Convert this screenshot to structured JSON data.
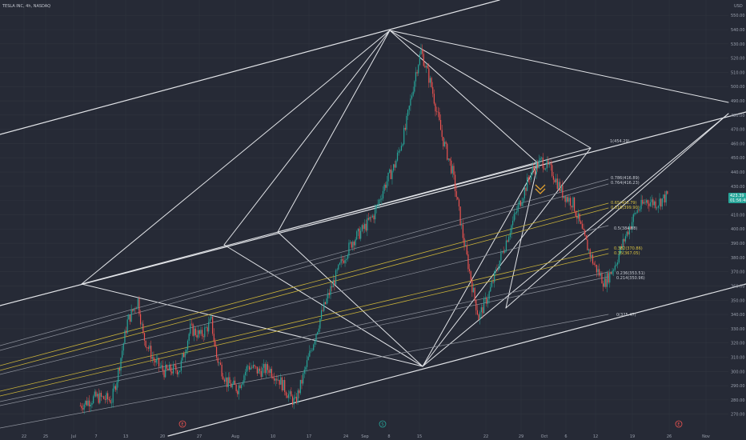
{
  "symbol_title": "TESLA INC, 4h, NASDAQ",
  "currency": "USD",
  "colors": {
    "background": "#262a36",
    "grid": "#30343f",
    "up": "#26a69a",
    "down": "#ef5350",
    "line_white": "#e2e4e8",
    "line_gray": "#8c909a",
    "fib_yellow": "#c9b23a",
    "marker_orange": "#e0a030"
  },
  "price_axis": {
    "ticks": [
      "550.00",
      "540.00",
      "530.00",
      "520.00",
      "510.00",
      "500.00",
      "490.00",
      "480.00",
      "470.00",
      "460.00",
      "450.00",
      "440.00",
      "430.00",
      "420.00",
      "410.00",
      "400.00",
      "390.00",
      "380.00",
      "370.00",
      "360.00",
      "350.00",
      "340.00",
      "330.00",
      "320.00",
      "310.00",
      "300.00",
      "290.00",
      "280.00",
      "270.00"
    ],
    "last_price": "423.39",
    "countdown": "01:56:48"
  },
  "time_axis": {
    "ticks": [
      "22",
      "25",
      "Jul",
      "7",
      "13",
      "20",
      "27",
      "Aug",
      "10",
      "17",
      "24",
      "Sep",
      "8",
      "15",
      "22",
      "29",
      "Oct",
      "6",
      "12",
      "19",
      "26",
      "Nov"
    ]
  },
  "fib_labels": [
    {
      "text": "1(454.29)",
      "color": "white"
    },
    {
      "text": "0.786(416.89)",
      "color": "white"
    },
    {
      "text": "0.764(416.23)",
      "color": "white"
    },
    {
      "text": "0.65(403.79)",
      "color": "yellow"
    },
    {
      "text": "0.618(399.90)",
      "color": "yellow"
    },
    {
      "text": "0.5(384.88)",
      "color": "white"
    },
    {
      "text": "0.382(370.86)",
      "color": "yellow"
    },
    {
      "text": "0.35(367.05)",
      "color": "yellow"
    },
    {
      "text": "0.236(353.51)",
      "color": "white"
    },
    {
      "text": "0.214(350.96)",
      "color": "white"
    },
    {
      "text": "0(325.47)",
      "color": "white"
    }
  ],
  "event_markers": [
    {
      "text": "E",
      "kind": "earnings"
    },
    {
      "text": "S",
      "kind": "split"
    },
    {
      "text": "E",
      "kind": "earnings"
    }
  ],
  "chart_data": {
    "type": "candlestick",
    "title": "TESLA INC, 4h, NASDAQ",
    "y_unit": "USD",
    "ylim": [
      265,
      555
    ],
    "x_range": [
      "2024-06-19",
      "2024-11-03"
    ],
    "grid": true,
    "close_path": [
      [
        "2024-07-04",
        276
      ],
      [
        "2024-07-07",
        282
      ],
      [
        "2024-07-10",
        280
      ],
      [
        "2024-07-11",
        295
      ],
      [
        "2024-07-13",
        335
      ],
      [
        "2024-07-15",
        350
      ],
      [
        "2024-07-16",
        325
      ],
      [
        "2024-07-18",
        308
      ],
      [
        "2024-07-20",
        300
      ],
      [
        "2024-07-23",
        302
      ],
      [
        "2024-07-25",
        330
      ],
      [
        "2024-07-27",
        325
      ],
      [
        "2024-07-29",
        335
      ],
      [
        "2024-07-30",
        310
      ],
      [
        "2024-08-01",
        292
      ],
      [
        "2024-08-03",
        288
      ],
      [
        "2024-08-05",
        304
      ],
      [
        "2024-08-07",
        300
      ],
      [
        "2024-08-09",
        302
      ],
      [
        "2024-08-11",
        294
      ],
      [
        "2024-08-13",
        282
      ],
      [
        "2024-08-14",
        278
      ],
      [
        "2024-08-15",
        290
      ],
      [
        "2024-08-17",
        315
      ],
      [
        "2024-08-19",
        340
      ],
      [
        "2024-08-21",
        360
      ],
      [
        "2024-08-23",
        378
      ],
      [
        "2024-08-25",
        392
      ],
      [
        "2024-08-27",
        400
      ],
      [
        "2024-08-29",
        410
      ],
      [
        "2024-08-31",
        430
      ],
      [
        "2024-09-02",
        445
      ],
      [
        "2024-09-04",
        470
      ],
      [
        "2024-09-06",
        510
      ],
      [
        "2024-09-07",
        525
      ],
      [
        "2024-09-09",
        500
      ],
      [
        "2024-09-11",
        465
      ],
      [
        "2024-09-13",
        440
      ],
      [
        "2024-09-15",
        395
      ],
      [
        "2024-09-17",
        355
      ],
      [
        "2024-09-18",
        338
      ],
      [
        "2024-09-20",
        355
      ],
      [
        "2024-09-22",
        378
      ],
      [
        "2024-09-24",
        400
      ],
      [
        "2024-09-26",
        420
      ],
      [
        "2024-09-28",
        440
      ],
      [
        "2024-09-30",
        448
      ],
      [
        "2024-10-02",
        440
      ],
      [
        "2024-10-04",
        425
      ],
      [
        "2024-10-06",
        418
      ],
      [
        "2024-10-08",
        395
      ],
      [
        "2024-10-10",
        375
      ],
      [
        "2024-10-12",
        362
      ],
      [
        "2024-10-14",
        375
      ],
      [
        "2024-10-16",
        395
      ],
      [
        "2024-10-18",
        412
      ],
      [
        "2024-10-20",
        420
      ],
      [
        "2024-10-22",
        418
      ],
      [
        "2024-10-24",
        423.39
      ]
    ]
  }
}
